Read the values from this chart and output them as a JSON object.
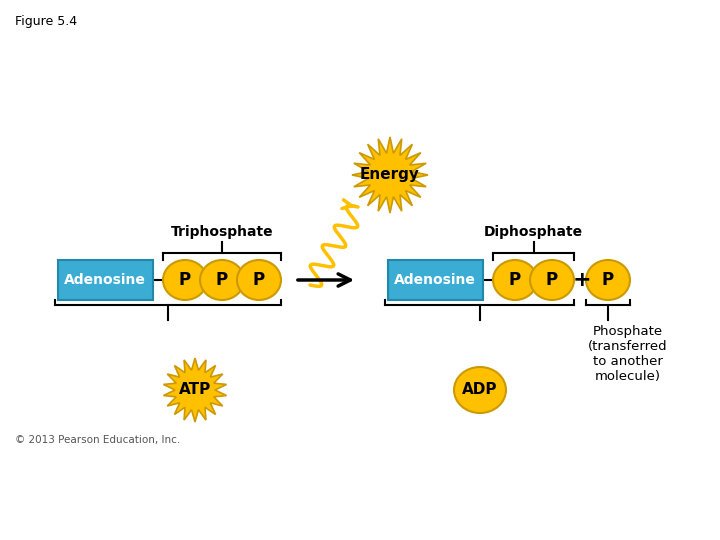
{
  "figure_title": "Figure 5.4",
  "background_color": "#ffffff",
  "adenosine_color": "#3BADD4",
  "adenosine_edge": "#2288AA",
  "phosphate_color": "#FFC000",
  "phosphate_edge": "#CC9900",
  "adenosine_text_color": "#ffffff",
  "phosphate_text_color": "#000000",
  "energy_color": "#FFC000",
  "energy_text": "Energy",
  "atp_text": "ATP",
  "adp_text": "ADP",
  "triphosphate_label": "Triphosphate",
  "diphosphate_label": "Diphosphate",
  "phosphate_label": "Phosphate\n(transferred\nto another\nmolecule)",
  "copyright": "© 2013 Pearson Education, Inc.",
  "arrow_color": "#000000",
  "wavy_color": "#FFC000",
  "line_color": "#000000"
}
